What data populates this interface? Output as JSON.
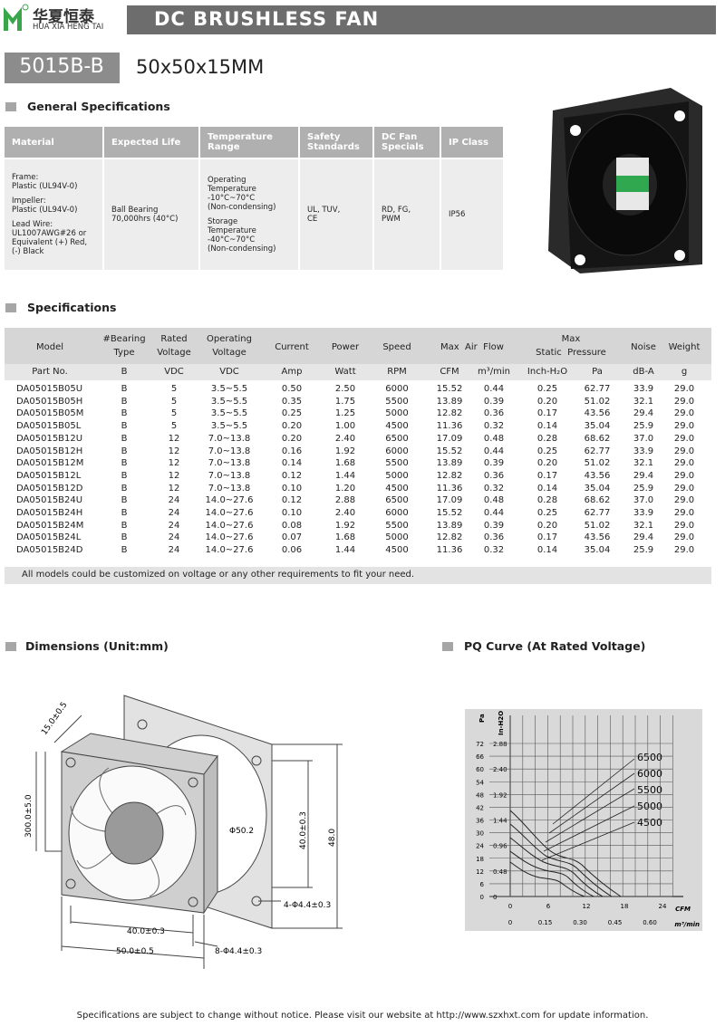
{
  "header": {
    "logo_cn": "华夏恒泰",
    "logo_en": "HUA XIA HENG TAI",
    "title": "DC BRUSHLESS FAN"
  },
  "model": {
    "name": "5015B-B",
    "size": "50x50x15MM"
  },
  "general": {
    "heading": "General Specifications",
    "columns": [
      "Material",
      "Expected Life",
      "Temperature\nRange",
      "Safety\nStandards",
      "DC Fan\nSpecials",
      "IP Class"
    ],
    "cells": [
      [
        "Frame:\nPlastic (UL94V-0)",
        "Impeller:\nPlastic (UL94V-0)",
        "Lead Wire:\nUL1007AWG#26 or\nEquivalent (+) Red,\n(-) Black"
      ],
      [
        "Ball Bearing\n70,000hrs (40°C)"
      ],
      [
        "Operating\nTemperature\n -10°C~70°C\n (Non-condensing)",
        "Storage\nTemperature\n -40°C~70°C\n(Non-condensing)"
      ],
      [
        "UL, TUV,\nCE"
      ],
      [
        "RD, FG,\nPWM"
      ],
      [
        "IP56"
      ]
    ]
  },
  "specs": {
    "heading": "Specifications",
    "header": [
      "Model",
      "#Bearing\nType",
      "Rated\nVoltage",
      "Operating\nVoltage",
      "Current",
      "Power",
      "Speed",
      "Max  Air  Flow",
      "Max\nStatic  Pressure",
      "Noise",
      "Weight"
    ],
    "units": [
      "Part No.",
      "B",
      "VDC",
      "VDC",
      "Amp",
      "Watt",
      "RPM",
      "CFM",
      "m³/min",
      "Inch-H₂O",
      "Pa",
      "dB-A",
      "g"
    ],
    "rows": [
      [
        "DA05015B05U",
        "B",
        "5",
        "3.5~5.5",
        "0.50",
        "2.50",
        "6000",
        "15.52",
        "0.44",
        "0.25",
        "62.77",
        "33.9",
        "29.0"
      ],
      [
        "DA05015B05H",
        "B",
        "5",
        "3.5~5.5",
        "0.35",
        "1.75",
        "5500",
        "13.89",
        "0.39",
        "0.20",
        "51.02",
        "32.1",
        "29.0"
      ],
      [
        "DA05015B05M",
        "B",
        "5",
        "3.5~5.5",
        "0.25",
        "1.25",
        "5000",
        "12.82",
        "0.36",
        "0.17",
        "43.56",
        "29.4",
        "29.0"
      ],
      [
        "DA05015B05L",
        "B",
        "5",
        "3.5~5.5",
        "0.20",
        "1.00",
        "4500",
        "11.36",
        "0.32",
        "0.14",
        "35.04",
        "25.9",
        "29.0"
      ],
      [
        "DA05015B12U",
        "B",
        "12",
        "7.0~13.8",
        "0.20",
        "2.40",
        "6500",
        "17.09",
        "0.48",
        "0.28",
        "68.62",
        "37.0",
        "29.0"
      ],
      [
        "DA05015B12H",
        "B",
        "12",
        "7.0~13.8",
        "0.16",
        "1.92",
        "6000",
        "15.52",
        "0.44",
        "0.25",
        "62.77",
        "33.9",
        "29.0"
      ],
      [
        "DA05015B12M",
        "B",
        "12",
        "7.0~13.8",
        "0.14",
        "1.68",
        "5500",
        "13.89",
        "0.39",
        "0.20",
        "51.02",
        "32.1",
        "29.0"
      ],
      [
        "DA05015B12L",
        "B",
        "12",
        "7.0~13.8",
        "0.12",
        "1.44",
        "5000",
        "12.82",
        "0.36",
        "0.17",
        "43.56",
        "29.4",
        "29.0"
      ],
      [
        "DA05015B12D",
        "B",
        "12",
        "7.0~13.8",
        "0.10",
        "1.20",
        "4500",
        "11.36",
        "0.32",
        "0.14",
        "35.04",
        "25.9",
        "29.0"
      ],
      [
        "DA05015B24U",
        "B",
        "24",
        "14.0~27.6",
        "0.12",
        "2.88",
        "6500",
        "17.09",
        "0.48",
        "0.28",
        "68.62",
        "37.0",
        "29.0"
      ],
      [
        "DA05015B24H",
        "B",
        "24",
        "14.0~27.6",
        "0.10",
        "2.40",
        "6000",
        "15.52",
        "0.44",
        "0.25",
        "62.77",
        "33.9",
        "29.0"
      ],
      [
        "DA05015B24M",
        "B",
        "24",
        "14.0~27.6",
        "0.08",
        "1.92",
        "5500",
        "13.89",
        "0.39",
        "0.20",
        "51.02",
        "32.1",
        "29.0"
      ],
      [
        "DA05015B24L",
        "B",
        "24",
        "14.0~27.6",
        "0.07",
        "1.68",
        "5000",
        "12.82",
        "0.36",
        "0.17",
        "43.56",
        "29.4",
        "29.0"
      ],
      [
        "DA05015B24D",
        "B",
        "24",
        "14.0~27.6",
        "0.06",
        "1.44",
        "4500",
        "11.36",
        "0.32",
        "0.14",
        "35.04",
        "25.9",
        "29.0"
      ]
    ],
    "note": "All models could be customized on voltage or any other requirements to fit your need."
  },
  "dimensions": {
    "heading": "Dimensions (Unit:mm)",
    "labels": [
      "15.0±0.5",
      "300.0±5.0",
      "Φ50.2",
      "40.0±0.3",
      "48.0",
      "4-Φ4.4±0.3",
      "40.0±0.3",
      "50.0±0.5",
      "8-Φ4.4±0.3"
    ]
  },
  "pq": {
    "heading": "PQ Curve (At Rated Voltage)",
    "pa_label": "Pa",
    "inh2o_label": "In-H2O",
    "pa_ticks": [
      "72",
      "66",
      "60",
      "54",
      "48",
      "42",
      "36",
      "30",
      "24",
      "18",
      "12",
      "6",
      "0"
    ],
    "inh2o_ticks": [
      "2.88",
      "2.40",
      "1.92",
      "1.44",
      "0.96",
      "0.48",
      "0"
    ],
    "cfm_label": "CFM",
    "cfm_ticks": [
      "0",
      "6",
      "12",
      "18",
      "24"
    ],
    "m3_label": "m³/min",
    "m3_ticks": [
      "0",
      "0.15",
      "0.30",
      "0.45",
      "0.60"
    ],
    "speeds": [
      "6500",
      "6000",
      "5500",
      "5000",
      "4500"
    ]
  },
  "footer": "Specifications are subject to change without notice. Please visit our website at http://www.szxhxt.com for update information."
}
